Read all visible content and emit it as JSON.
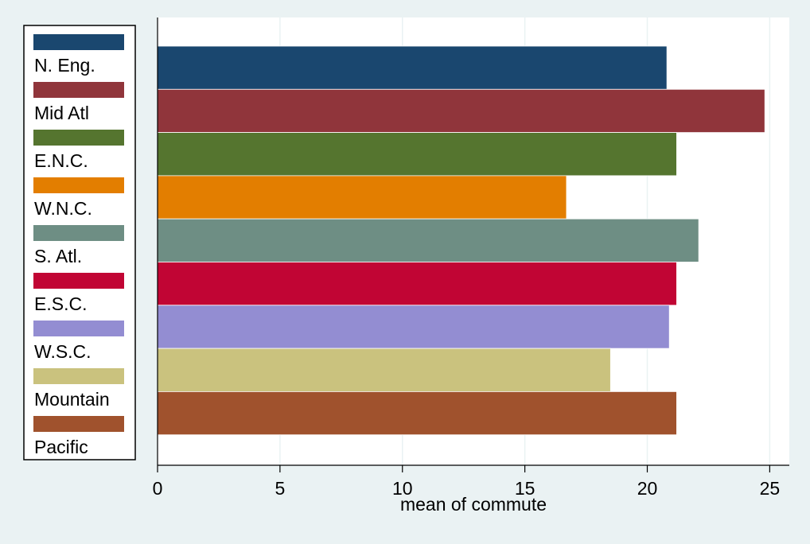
{
  "chart_data": {
    "type": "bar",
    "orientation": "horizontal",
    "categories": [
      "N. Eng.",
      "Mid Atl",
      "E.N.C.",
      "W.N.C.",
      "S. Atl.",
      "E.S.C.",
      "W.S.C.",
      "Mountain",
      "Pacific"
    ],
    "values": [
      20.8,
      24.8,
      21.2,
      16.7,
      22.1,
      21.2,
      20.9,
      18.5,
      21.2
    ],
    "colors": [
      "#1a476f",
      "#90353b",
      "#55752f",
      "#e37e00",
      "#6e8e84",
      "#c10534",
      "#938dd2",
      "#cac27e",
      "#a0522d"
    ],
    "xlabel": "mean of commute",
    "xlim": [
      0,
      25.8
    ],
    "xticks": [
      0,
      5,
      10,
      15,
      20,
      25
    ],
    "grid": "vertical",
    "legend": "left",
    "background": "#eaf2f3"
  }
}
